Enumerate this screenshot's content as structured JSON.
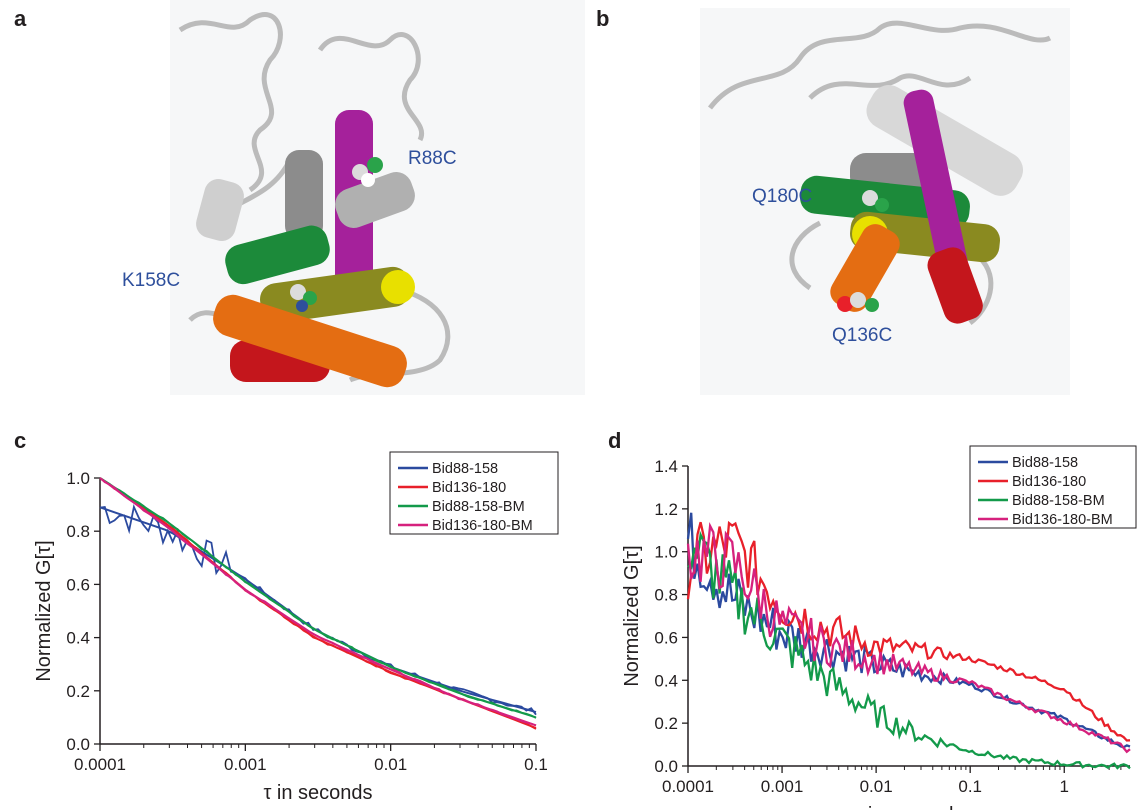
{
  "panels": {
    "a": {
      "letter": "a",
      "labels": [
        "R88C",
        "K158C"
      ]
    },
    "b": {
      "letter": "b",
      "labels": [
        "Q180C",
        "Q136C"
      ]
    },
    "c": {
      "letter": "c"
    },
    "d": {
      "letter": "d"
    }
  },
  "colors": {
    "label_blue": "#2e4f9c",
    "bid88_158": "#2b4a9f",
    "bid136_180": "#e8202a",
    "bid88_158_BM": "#139a4a",
    "bid136_180_BM": "#d6217d",
    "helix_magenta": "#a5219b",
    "helix_green": "#1c8a3a",
    "helix_olive": "#8a8a20",
    "helix_yellow": "#e8e000",
    "helix_orange": "#e46d12",
    "helix_red": "#c4161c",
    "helix_grey": "#a9a9a9"
  },
  "chart_data": [
    {
      "type": "line",
      "panel": "c",
      "xlabel": "τ in seconds",
      "ylabel": "Normalized G[τ]",
      "xscale": "log",
      "xlim": [
        0.0001,
        0.1
      ],
      "ylim": [
        0.0,
        1.0
      ],
      "xticks": [
        "0.0001",
        "0.001",
        "0.01",
        "0.1"
      ],
      "yticks": [
        "0.0",
        "0.2",
        "0.4",
        "0.6",
        "0.8",
        "1.0"
      ],
      "legend_position": "top-right",
      "series": [
        {
          "name": "Bid88-158",
          "color": "#2b4a9f",
          "x": [
            0.0001,
            0.0003,
            0.001,
            0.003,
            0.01,
            0.03,
            0.1
          ],
          "y": [
            0.89,
            0.8,
            0.62,
            0.43,
            0.29,
            0.2,
            0.12
          ],
          "noisy": true
        },
        {
          "name": "Bid136-180",
          "color": "#e8202a",
          "x": [
            0.0001,
            0.0003,
            0.001,
            0.003,
            0.01,
            0.03,
            0.1
          ],
          "y": [
            1.0,
            0.82,
            0.58,
            0.4,
            0.27,
            0.17,
            0.06
          ],
          "noisy": false
        },
        {
          "name": "Bid88-158-BM",
          "color": "#139a4a",
          "x": [
            0.0001,
            0.0003,
            0.001,
            0.003,
            0.01,
            0.03,
            0.1
          ],
          "y": [
            1.0,
            0.83,
            0.61,
            0.43,
            0.29,
            0.19,
            0.1
          ],
          "noisy": false
        },
        {
          "name": "Bid136-180-BM",
          "color": "#d6217d",
          "x": [
            0.0001,
            0.0003,
            0.001,
            0.003,
            0.01,
            0.03,
            0.1
          ],
          "y": [
            1.0,
            0.81,
            0.58,
            0.41,
            0.28,
            0.17,
            0.07
          ],
          "noisy": false
        }
      ]
    },
    {
      "type": "line",
      "panel": "d",
      "xlabel": "τ in seconds",
      "ylabel": "Normalized G[τ]",
      "xscale": "log",
      "xlim": [
        0.0001,
        5
      ],
      "ylim": [
        0.0,
        1.4
      ],
      "xticks": [
        "0.0001",
        "0.001",
        "0.01",
        "0.1",
        "1"
      ],
      "yticks": [
        "0.0",
        "0.2",
        "0.4",
        "0.6",
        "0.8",
        "1.0",
        "1.2",
        "1.4"
      ],
      "legend_position": "top-right",
      "series": [
        {
          "name": "Bid88-158",
          "color": "#2b4a9f",
          "x": [
            0.0001,
            0.0003,
            0.001,
            0.003,
            0.01,
            0.03,
            0.1,
            0.3,
            1,
            3,
            5
          ],
          "y": [
            1.05,
            0.78,
            0.62,
            0.55,
            0.47,
            0.43,
            0.38,
            0.3,
            0.22,
            0.12,
            0.08
          ]
        },
        {
          "name": "Bid136-180",
          "color": "#e8202a",
          "x": [
            0.0001,
            0.0003,
            0.001,
            0.003,
            0.01,
            0.03,
            0.1,
            0.3,
            1,
            3,
            5
          ],
          "y": [
            0.95,
            1.05,
            0.75,
            0.64,
            0.56,
            0.54,
            0.5,
            0.44,
            0.36,
            0.18,
            0.11
          ]
        },
        {
          "name": "Bid88-158-BM",
          "color": "#139a4a",
          "x": [
            0.0001,
            0.0003,
            0.001,
            0.003,
            0.01,
            0.03,
            0.1,
            0.3,
            1,
            3,
            5
          ],
          "y": [
            1.05,
            0.8,
            0.58,
            0.4,
            0.24,
            0.14,
            0.07,
            0.03,
            0.01,
            0.0,
            0.0
          ]
        },
        {
          "name": "Bid136-180-BM",
          "color": "#d6217d",
          "x": [
            0.0001,
            0.0003,
            0.001,
            0.003,
            0.01,
            0.03,
            0.1,
            0.3,
            1,
            3,
            5
          ],
          "y": [
            1.0,
            0.95,
            0.65,
            0.56,
            0.49,
            0.44,
            0.39,
            0.3,
            0.21,
            0.12,
            0.07
          ]
        }
      ]
    }
  ]
}
